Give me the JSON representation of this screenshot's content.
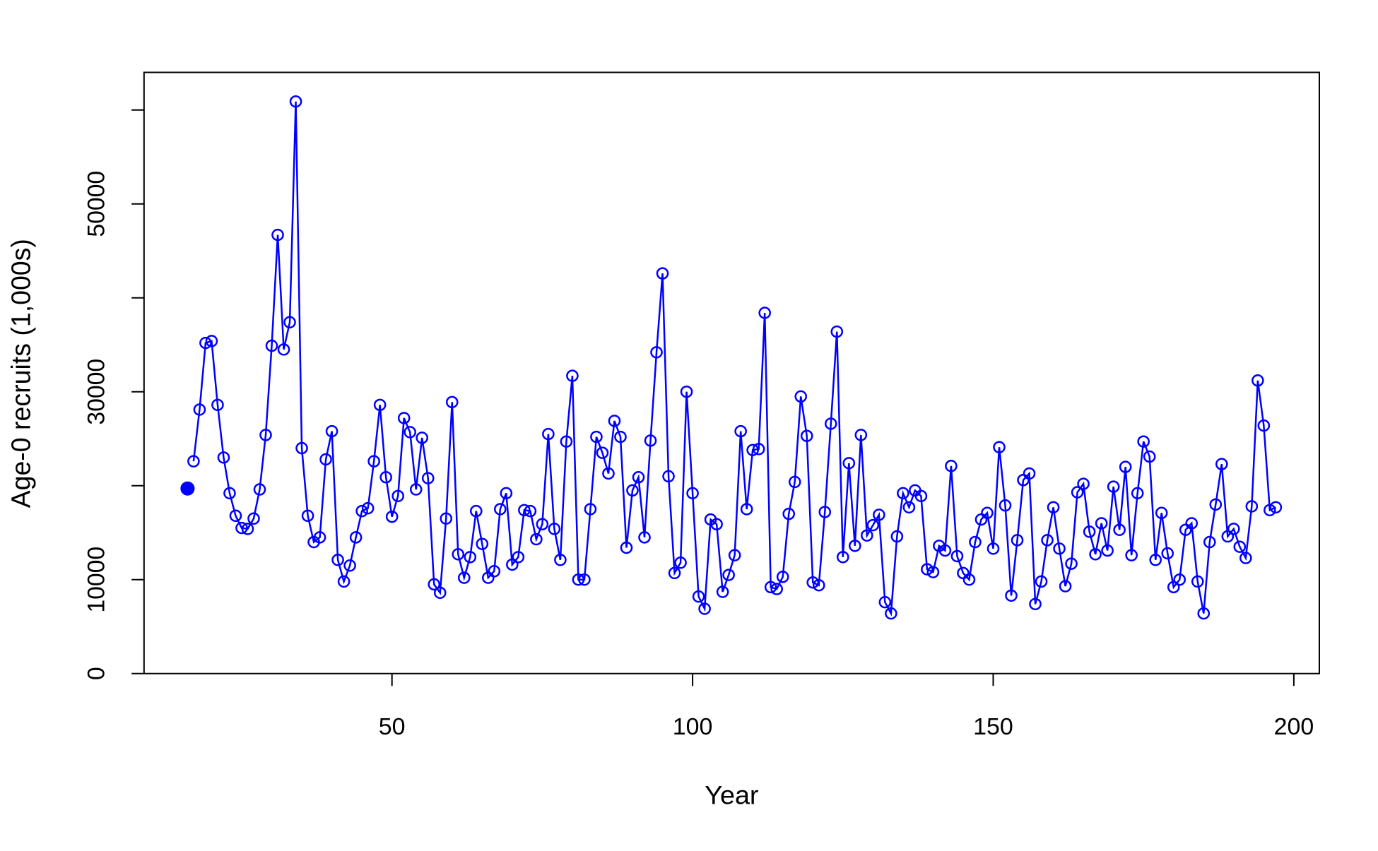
{
  "chart_data": {
    "type": "line",
    "xlabel": "Year",
    "ylabel": "Age-0 recruits (1,000s)",
    "xlim": [
      8.76,
      204.24
    ],
    "ylim": [
      0,
      64000
    ],
    "xticks": [
      50,
      100,
      150,
      200
    ],
    "yticks": [
      0,
      10000,
      30000,
      50000
    ],
    "yticks_unlabeled": [
      20000,
      40000,
      60000
    ],
    "grid": false,
    "series": [
      {
        "color": "#0000ff",
        "marker": "filled",
        "line": false,
        "x": [
          16
        ],
        "values": [
          19700
        ]
      },
      {
        "color": "#0000ff",
        "marker": "open",
        "line": true,
        "x": [
          17,
          18,
          19,
          20,
          21,
          22,
          23,
          24,
          25,
          26,
          27,
          28,
          29,
          30,
          31,
          32,
          33,
          34,
          35,
          36,
          37,
          38,
          39,
          40,
          41,
          42,
          43,
          44,
          45,
          46,
          47,
          48,
          49,
          50,
          51,
          52,
          53,
          54,
          55,
          56,
          57,
          58,
          59,
          60,
          61,
          62,
          63,
          64,
          65,
          66,
          67,
          68,
          69,
          70,
          71,
          72,
          73,
          74,
          75,
          76,
          77,
          78,
          79,
          80,
          81,
          82,
          83,
          84,
          85,
          86,
          87,
          88,
          89,
          90,
          91,
          92,
          93,
          94,
          95,
          96,
          97,
          98,
          99,
          100,
          101,
          102,
          103,
          104,
          105,
          106,
          107,
          108,
          109,
          110,
          111,
          112,
          113,
          114,
          115,
          116,
          117,
          118,
          119,
          120,
          121,
          122,
          123,
          124,
          125,
          126,
          127,
          128,
          129,
          130,
          131,
          132,
          133,
          134,
          135,
          136,
          137,
          138,
          139,
          140,
          141,
          142,
          143,
          144,
          145,
          146,
          147,
          148,
          149,
          150,
          151,
          152,
          153,
          154,
          155,
          156,
          157,
          158,
          159,
          160,
          161,
          162,
          163,
          164,
          165,
          166,
          167,
          168,
          169,
          170,
          171,
          172,
          173,
          174,
          175,
          176,
          177,
          178,
          179,
          180,
          181,
          182,
          183,
          184,
          185,
          186,
          187,
          188,
          189,
          190,
          191,
          192,
          193,
          194,
          195,
          196,
          197
        ],
        "values": [
          22600,
          28100,
          35200,
          35400,
          28600,
          23000,
          19200,
          16800,
          15500,
          15400,
          16500,
          19600,
          25400,
          34900,
          46700,
          34500,
          37400,
          60900,
          24000,
          16800,
          14000,
          14500,
          22800,
          25800,
          12100,
          9800,
          11500,
          14500,
          17300,
          17600,
          22600,
          28600,
          20900,
          16700,
          18900,
          27200,
          25700,
          19600,
          25100,
          20800,
          9500,
          8600,
          16500,
          28900,
          12700,
          10200,
          12400,
          17300,
          13800,
          10200,
          10900,
          17500,
          19200,
          11600,
          12400,
          17400,
          17300,
          14300,
          15900,
          25500,
          15400,
          12100,
          24700,
          31700,
          10000,
          10000,
          17500,
          25200,
          23500,
          21300,
          26900,
          25200,
          13400,
          19500,
          20900,
          14500,
          24800,
          34200,
          42600,
          21000,
          10700,
          11800,
          30000,
          19200,
          8200,
          6900,
          16400,
          15900,
          8700,
          10500,
          12600,
          25800,
          17500,
          23800,
          23900,
          38400,
          9200,
          9000,
          10300,
          17000,
          20400,
          29500,
          25300,
          9700,
          9400,
          17200,
          26600,
          36400,
          12400,
          22400,
          13600,
          25400,
          14700,
          15800,
          16900,
          7600,
          6400,
          14600,
          19200,
          17700,
          19500,
          18900,
          11100,
          10800,
          13600,
          13100,
          22100,
          12500,
          10700,
          10000,
          14000,
          16400,
          17100,
          13300,
          24100,
          17900,
          8300,
          14200,
          20600,
          21300,
          7400,
          9800,
          14200,
          17700,
          13300,
          9300,
          11700,
          19300,
          20200,
          15100,
          12700,
          16000,
          13100,
          19900,
          15300,
          22000,
          12600,
          19200,
          24700,
          23100,
          12100,
          17100,
          12800,
          9200,
          10000,
          15300,
          16000,
          9800,
          6400,
          14000,
          18000,
          22300,
          14600,
          15400,
          13500,
          12300,
          17800,
          31200,
          26400,
          17400,
          17700
        ]
      }
    ]
  }
}
